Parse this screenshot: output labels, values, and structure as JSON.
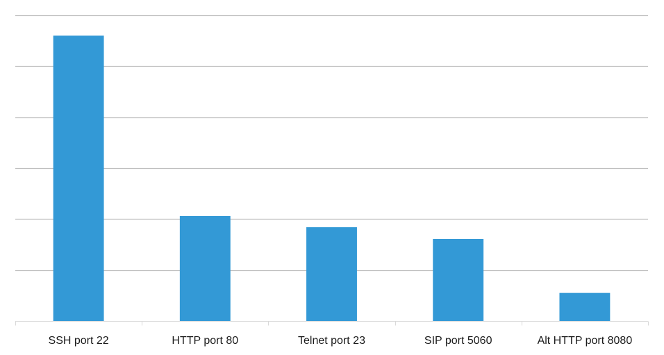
{
  "chart_data": {
    "type": "bar",
    "title": "",
    "xlabel": "",
    "ylabel": "",
    "categories": [
      "SSH port 22",
      "HTTP port 80",
      "Telnet port 23",
      "SIP port 5060",
      "Alt HTTP port 8080"
    ],
    "values": [
      5.6,
      2.06,
      1.84,
      1.61,
      0.55
    ],
    "ylim": [
      0,
      6
    ],
    "grid": true,
    "legend": "none",
    "colors": {
      "bar": "#3399d6",
      "grid": "#bfbfbf",
      "axis": "#d9d9d9",
      "text": "#1a1a1a"
    }
  }
}
